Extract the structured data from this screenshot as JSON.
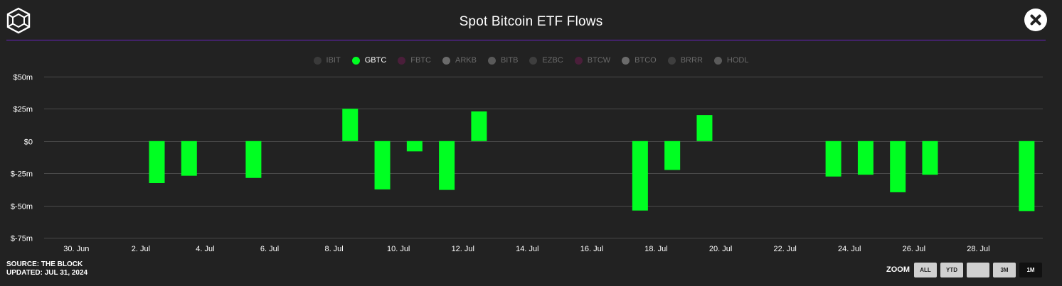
{
  "header": {
    "title": "Spot Bitcoin ETF Flows",
    "logo_icon": "cube-icon",
    "close_icon": "close-icon"
  },
  "legend": {
    "items": [
      {
        "label": "IBIT",
        "color": "#3a3a3a",
        "active": false
      },
      {
        "label": "GBTC",
        "color": "#00ff22",
        "active": true
      },
      {
        "label": "FBTC",
        "color": "#4a1e3a",
        "active": false
      },
      {
        "label": "ARKB",
        "color": "#6b6b6b",
        "active": false
      },
      {
        "label": "BITB",
        "color": "#5a5a5a",
        "active": false
      },
      {
        "label": "EZBC",
        "color": "#3e3e3e",
        "active": false
      },
      {
        "label": "BTCW",
        "color": "#4a1e3a",
        "active": false
      },
      {
        "label": "BTCO",
        "color": "#6b6b6b",
        "active": false
      },
      {
        "label": "BRRR",
        "color": "#3e3e3e",
        "active": false
      },
      {
        "label": "HODL",
        "color": "#5a5a5a",
        "active": false
      }
    ]
  },
  "footer": {
    "source": "SOURCE: THE BLOCK",
    "updated": "UPDATED: JUL 31, 2024"
  },
  "zoom": {
    "label": "ZOOM",
    "buttons": [
      {
        "label": "ALL",
        "selected": false
      },
      {
        "label": "YTD",
        "selected": false
      },
      {
        "label": "",
        "selected": false
      },
      {
        "label": "3M",
        "selected": false
      },
      {
        "label": "1M",
        "selected": true
      }
    ]
  },
  "colors": {
    "bar": "#00ff22",
    "grid": "#4a4a4a",
    "accent": "#6a22c2"
  },
  "chart_data": {
    "type": "bar",
    "title": "Spot Bitcoin ETF Flows",
    "xlabel": "",
    "ylabel": "",
    "ylim": [
      -75,
      50
    ],
    "y_ticks": [
      50,
      25,
      0,
      -25,
      -50,
      -75
    ],
    "y_tick_labels": [
      "$50m",
      "$25m",
      "$0",
      "$-25m",
      "$-50m",
      "$-75m"
    ],
    "x_start": "2024-06-29",
    "x_end": "2024-07-30",
    "x_ticks": [
      {
        "date": "2024-06-30",
        "label": "30. Jun"
      },
      {
        "date": "2024-07-02",
        "label": "2. Jul"
      },
      {
        "date": "2024-07-04",
        "label": "4. Jul"
      },
      {
        "date": "2024-07-06",
        "label": "6. Jul"
      },
      {
        "date": "2024-07-08",
        "label": "8. Jul"
      },
      {
        "date": "2024-07-10",
        "label": "10. Jul"
      },
      {
        "date": "2024-07-12",
        "label": "12. Jul"
      },
      {
        "date": "2024-07-14",
        "label": "14. Jul"
      },
      {
        "date": "2024-07-16",
        "label": "16. Jul"
      },
      {
        "date": "2024-07-18",
        "label": "18. Jul"
      },
      {
        "date": "2024-07-20",
        "label": "20. Jul"
      },
      {
        "date": "2024-07-22",
        "label": "22. Jul"
      },
      {
        "date": "2024-07-24",
        "label": "24. Jul"
      },
      {
        "date": "2024-07-26",
        "label": "26. Jul"
      },
      {
        "date": "2024-07-28",
        "label": "28. Jul"
      }
    ],
    "grid": true,
    "legend_position": "top-center",
    "series": [
      {
        "name": "GBTC",
        "color": "#00ff22",
        "points": [
          {
            "date": "2024-07-02",
            "value": -32.6
          },
          {
            "date": "2024-07-03",
            "value": -26.9
          },
          {
            "date": "2024-07-05",
            "value": -28.6
          },
          {
            "date": "2024-07-08",
            "value": 25.1
          },
          {
            "date": "2024-07-09",
            "value": -37.5
          },
          {
            "date": "2024-07-10",
            "value": -8.0
          },
          {
            "date": "2024-07-11",
            "value": -37.9
          },
          {
            "date": "2024-07-12",
            "value": 23.0
          },
          {
            "date": "2024-07-17",
            "value": -53.9
          },
          {
            "date": "2024-07-18",
            "value": -22.4
          },
          {
            "date": "2024-07-19",
            "value": 20.2
          },
          {
            "date": "2024-07-23",
            "value": -27.5
          },
          {
            "date": "2024-07-24",
            "value": -26.1
          },
          {
            "date": "2024-07-25",
            "value": -39.7
          },
          {
            "date": "2024-07-26",
            "value": -26.1
          },
          {
            "date": "2024-07-29",
            "value": -54.3
          }
        ]
      }
    ]
  }
}
